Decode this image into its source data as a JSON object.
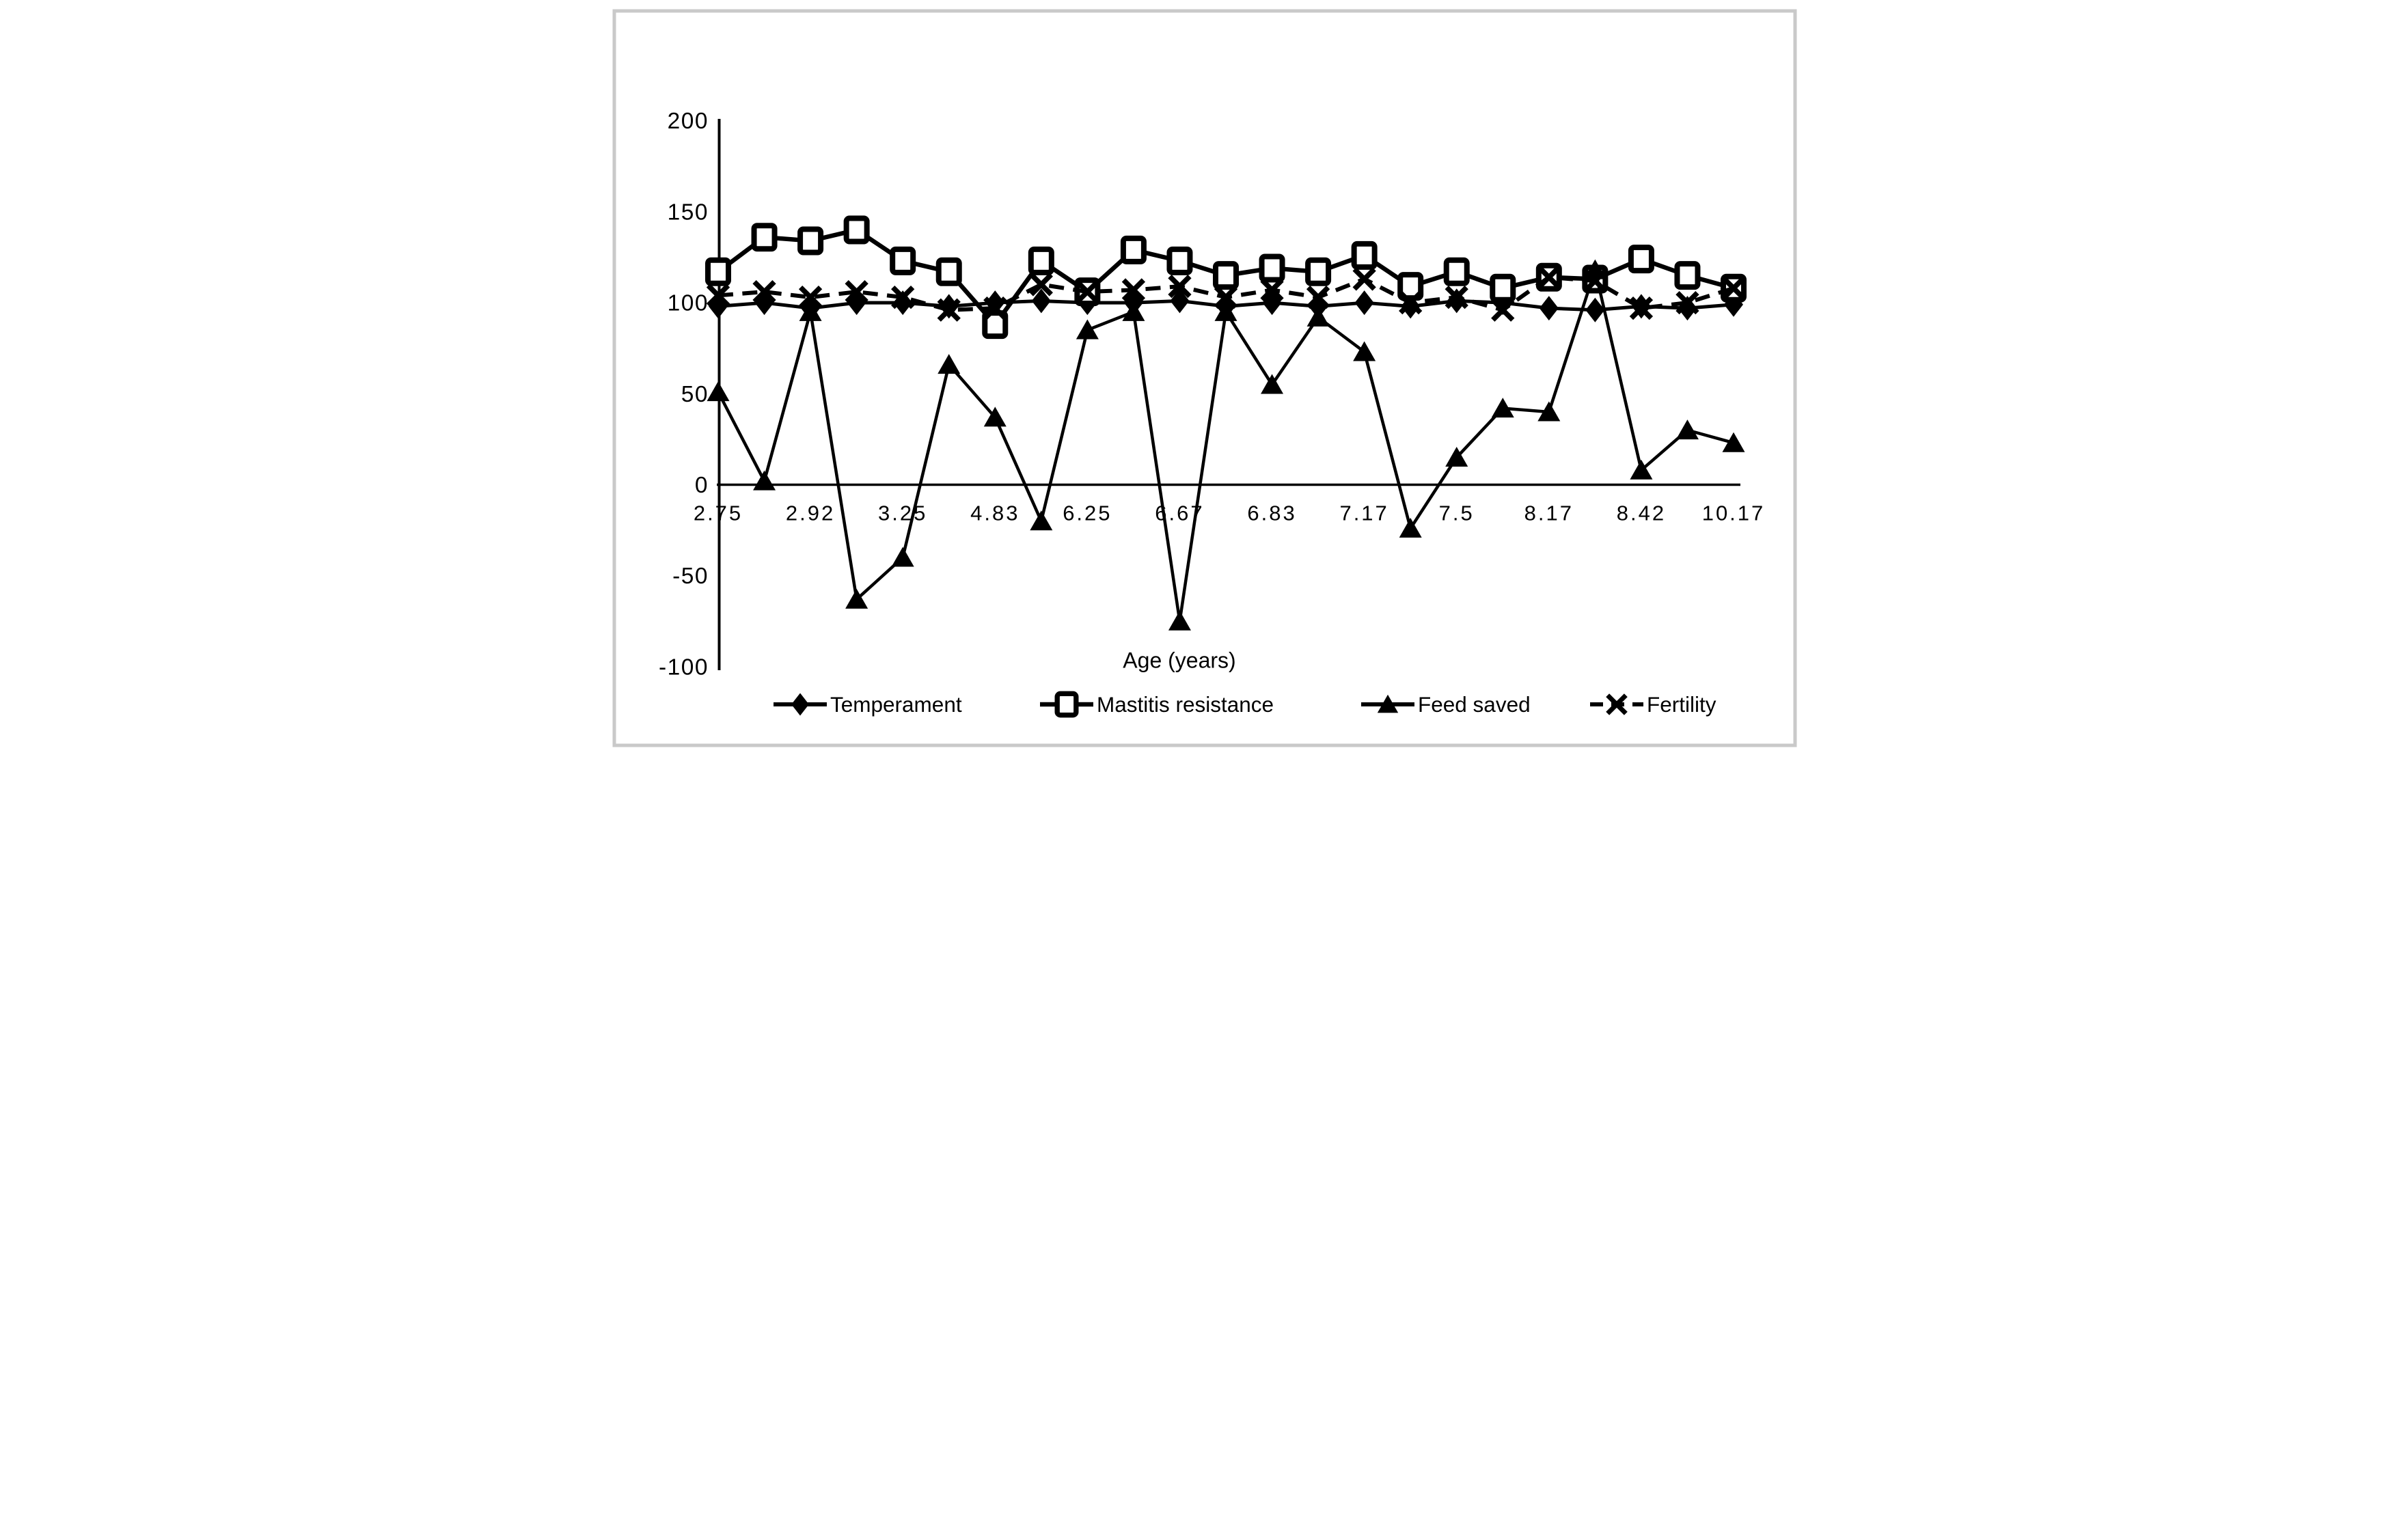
{
  "figure": {
    "background": "#ffffff",
    "border_color": "#c9c9c9"
  },
  "chart_data": {
    "type": "line",
    "title": "",
    "xlabel": "Age (years)",
    "ylabel": "",
    "ylim": [
      -100,
      200
    ],
    "yticks": [
      200,
      150,
      100,
      50,
      0,
      -50,
      -100
    ],
    "x_tick_labels": [
      "2.75",
      "2.92",
      "3.25",
      "4.83",
      "6.25",
      "6.67",
      "6.83",
      "7.17",
      "7.5",
      "8.17",
      "8.42",
      "10.17"
    ],
    "tick_label_every": 2,
    "n_points": 23,
    "grid": false,
    "legend_position": "bottom",
    "line_color": "#000000",
    "series": [
      {
        "name": "Temperament",
        "marker": "diamond",
        "line": "solid",
        "values": [
          98,
          100,
          97,
          100,
          100,
          98,
          100,
          101,
          100,
          100,
          101,
          98,
          100,
          98,
          100,
          98,
          101,
          100,
          97,
          96,
          98,
          97,
          99
        ]
      },
      {
        "name": "Mastitis resistance",
        "marker": "square-open",
        "line": "solid",
        "values": [
          117,
          136,
          134,
          140,
          123,
          117,
          88,
          123,
          106,
          129,
          123,
          115,
          119,
          117,
          126,
          109,
          117,
          108,
          114,
          113,
          124,
          115,
          108
        ]
      },
      {
        "name": "Feed saved",
        "marker": "triangle",
        "line": "solid",
        "values": [
          51,
          2,
          95,
          -63,
          -40,
          66,
          37,
          -20,
          85,
          95,
          -75,
          95,
          55,
          92,
          73,
          -24,
          15,
          42,
          40,
          118,
          8,
          30,
          23
        ]
      },
      {
        "name": "Fertility",
        "marker": "x",
        "line": "dashed",
        "values": [
          104,
          106,
          103,
          106,
          103,
          96,
          97,
          110,
          106,
          107,
          109,
          103,
          107,
          103,
          113,
          100,
          103,
          96,
          114,
          112,
          97,
          100,
          108
        ]
      }
    ]
  }
}
